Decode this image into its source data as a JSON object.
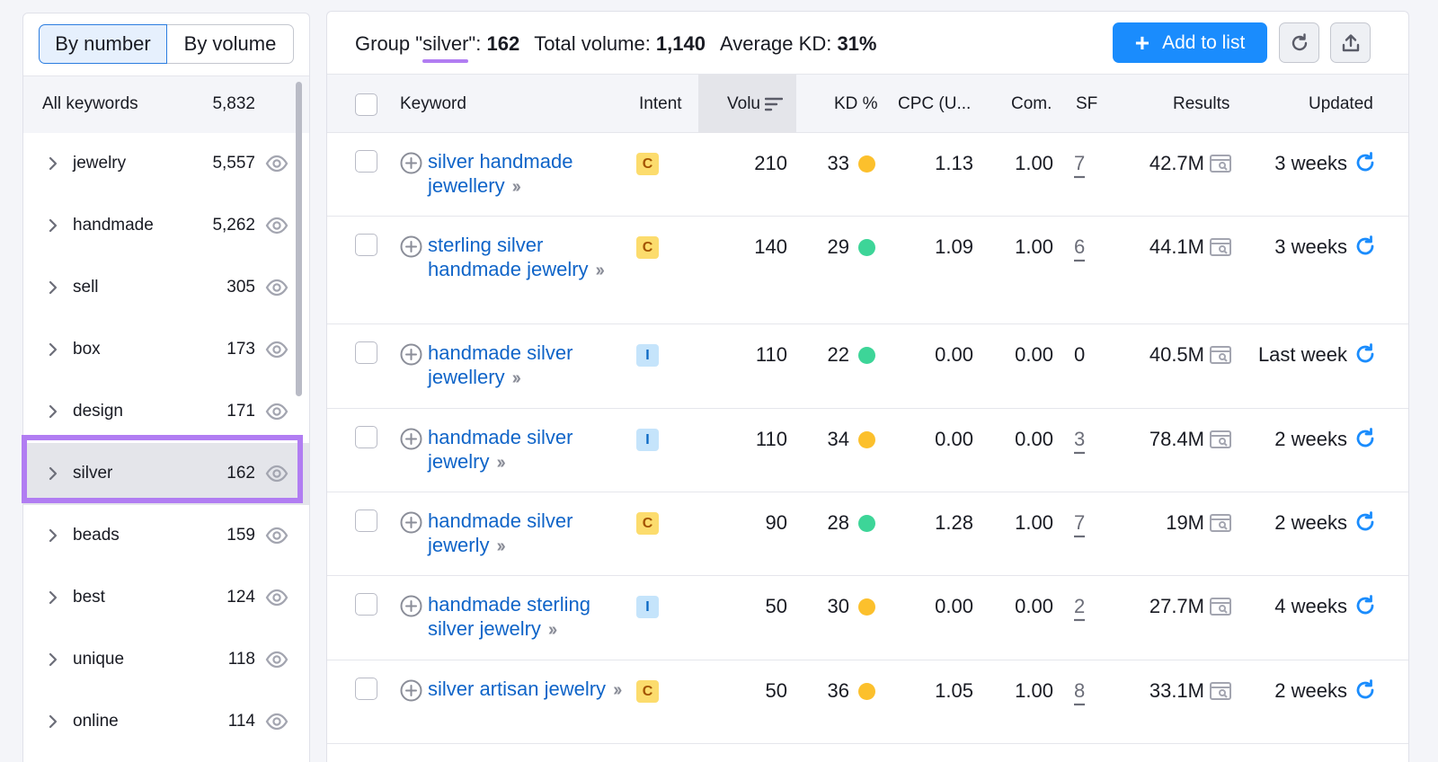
{
  "sidebar": {
    "toggle": {
      "by_number": "By number",
      "by_volume": "By volume"
    },
    "all_keywords": {
      "label": "All keywords",
      "count": "5,832"
    },
    "items": [
      {
        "label": "jewelry",
        "count": "5,557"
      },
      {
        "label": "handmade",
        "count": "5,262"
      },
      {
        "label": "sell",
        "count": "305"
      },
      {
        "label": "box",
        "count": "173"
      },
      {
        "label": "design",
        "count": "171"
      },
      {
        "label": "silver",
        "count": "162",
        "selected": true
      },
      {
        "label": "beads",
        "count": "159"
      },
      {
        "label": "best",
        "count": "124"
      },
      {
        "label": "unique",
        "count": "118"
      },
      {
        "label": "online",
        "count": "114"
      }
    ]
  },
  "summary": {
    "group_prefix": "Group \"",
    "group_name": "silver",
    "group_suffix": "\": ",
    "group_count": "162",
    "total_volume_label": "Total volume: ",
    "total_volume": "1,140",
    "avg_kd_label": "Average KD: ",
    "avg_kd": "31%"
  },
  "toolbar": {
    "add_to_list": "Add to list"
  },
  "table": {
    "headers": {
      "keyword": "Keyword",
      "intent": "Intent",
      "volume": "Volu",
      "kd": "KD %",
      "cpc": "CPC (U...",
      "com": "Com.",
      "sf": "SF",
      "results": "Results",
      "updated": "Updated"
    },
    "rows": [
      {
        "keyword": "silver handmade jewellery",
        "intent": "C",
        "volume": "210",
        "kd": "33",
        "kd_color": "#fcc02c",
        "cpc": "1.13",
        "com": "1.00",
        "sf": "7",
        "results": "42.7M",
        "updated": "3 weeks"
      },
      {
        "keyword": "sterling silver handmade jewelry",
        "intent": "C",
        "volume": "140",
        "kd": "29",
        "kd_color": "#3dd598",
        "cpc": "1.09",
        "com": "1.00",
        "sf": "6",
        "results": "44.1M",
        "updated": "3 weeks"
      },
      {
        "keyword": "handmade silver jewellery",
        "intent": "I",
        "volume": "110",
        "kd": "22",
        "kd_color": "#3dd598",
        "cpc": "0.00",
        "com": "0.00",
        "sf": "0",
        "results": "40.5M",
        "updated": "Last week"
      },
      {
        "keyword": "handmade silver jewelry",
        "intent": "I",
        "volume": "110",
        "kd": "34",
        "kd_color": "#fcc02c",
        "cpc": "0.00",
        "com": "0.00",
        "sf": "3",
        "results": "78.4M",
        "updated": "2 weeks"
      },
      {
        "keyword": "handmade silver jewerly",
        "intent": "C",
        "volume": "90",
        "kd": "28",
        "kd_color": "#3dd598",
        "cpc": "1.28",
        "com": "1.00",
        "sf": "7",
        "results": "19M",
        "updated": "2 weeks"
      },
      {
        "keyword": "handmade sterling silver jewelry",
        "intent": "I",
        "volume": "50",
        "kd": "30",
        "kd_color": "#fcc02c",
        "cpc": "0.00",
        "com": "0.00",
        "sf": "2",
        "results": "27.7M",
        "updated": "4 weeks"
      },
      {
        "keyword": "silver artisan jewelry",
        "intent": "C",
        "volume": "50",
        "kd": "36",
        "kd_color": "#fcc02c",
        "cpc": "1.05",
        "com": "1.00",
        "sf": "8",
        "results": "33.1M",
        "updated": "2 weeks"
      }
    ]
  },
  "colors": {
    "accent": "#1a8cfd",
    "link": "#0f64c8",
    "highlight": "#b17df2",
    "kd_easy": "#3dd598",
    "kd_medium": "#fcc02c"
  }
}
